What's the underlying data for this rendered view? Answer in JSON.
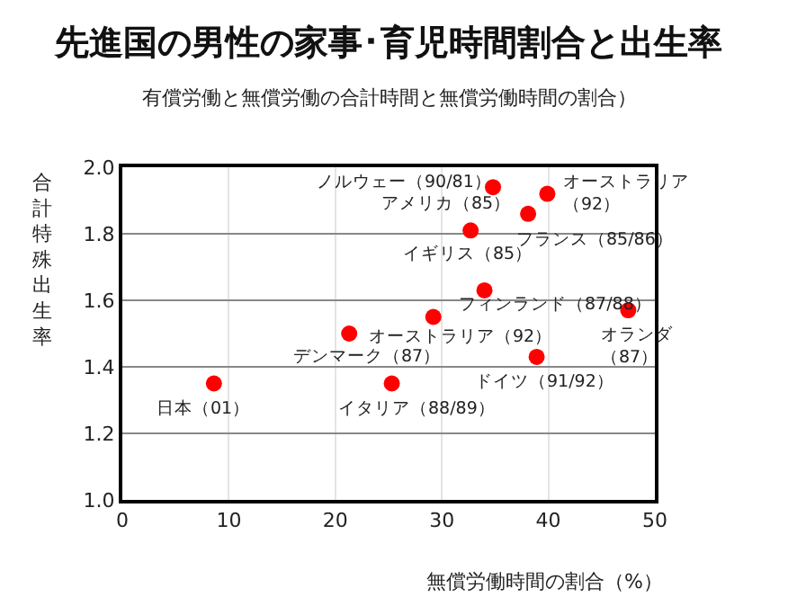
{
  "chart_data": {
    "type": "scatter",
    "title": "先進国の男性の家事･育児時間割合と出生率",
    "subtitle": "有償労働と無償労働の合計時間と無償労働時間の割合）",
    "xlabel": "無償労働時間の割合（%）",
    "ylabel": "合計特殊出生率",
    "x": [
      34.8,
      39.9,
      38.1,
      32.7,
      34.0,
      47.5,
      29.2,
      21.3,
      38.9,
      8.6,
      25.3
    ],
    "series": [
      {
        "color": "#ff0000",
        "values": [
          1.94,
          1.92,
          1.86,
          1.81,
          1.63,
          1.57,
          1.55,
          1.5,
          1.43,
          1.35,
          1.35
        ]
      }
    ],
    "xlim": [
      0,
      50
    ],
    "xticks": [
      0,
      10,
      20,
      30,
      40,
      50
    ],
    "ylim": [
      1.0,
      2.0
    ],
    "yticks": [
      {
        "value": 1.0,
        "label": "1.0"
      },
      {
        "value": 1.2,
        "label": "1.2"
      },
      {
        "value": 1.4,
        "label": "1.4"
      },
      {
        "value": 1.6,
        "label": "1.6"
      },
      {
        "value": 1.8,
        "label": "1.8"
      },
      {
        "value": 2.0,
        "label": "2.0"
      }
    ],
    "grid": true,
    "marker": "circle",
    "annotations": [
      {
        "text": "ノルウェー（90/81）",
        "x": 34.8,
        "y": 1.94
      },
      {
        "text": "オーストラリア（92）",
        "x": 39.9,
        "y": 1.92
      },
      {
        "text": "アメリカ（85）",
        "x": 38.1,
        "y": 1.86
      },
      {
        "text": "フランス（85/86）",
        "x": 38.1,
        "y": 1.86
      },
      {
        "text": "イギリス（85）",
        "x": 32.7,
        "y": 1.81
      },
      {
        "text": "フィンランド（87/88）",
        "x": 34.0,
        "y": 1.63
      },
      {
        "text": "オランダ（87）",
        "x": 47.5,
        "y": 1.57
      },
      {
        "text": "オーストラリア（92）",
        "x": 29.2,
        "y": 1.55
      },
      {
        "text": "デンマーク（87）",
        "x": 21.3,
        "y": 1.5
      },
      {
        "text": "ドイツ（91/92）",
        "x": 38.9,
        "y": 1.43
      },
      {
        "text": "日本（01）",
        "x": 8.6,
        "y": 1.35
      },
      {
        "text": "イタリア（88/89）",
        "x": 25.3,
        "y": 1.35
      }
    ]
  }
}
